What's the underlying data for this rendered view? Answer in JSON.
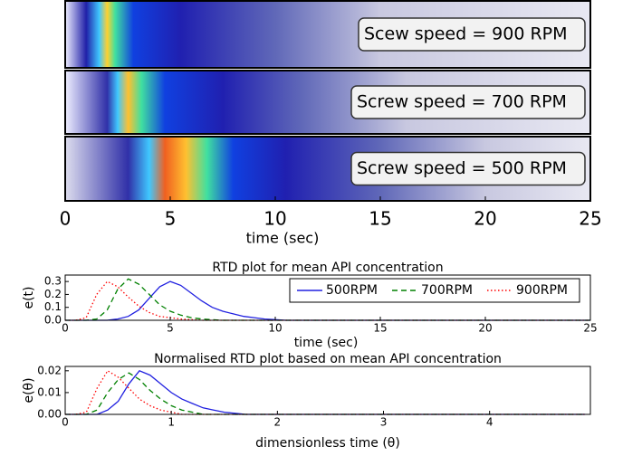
{
  "chart_data": [
    {
      "type": "heatmap",
      "xlabel": "time (sec)",
      "xlim": [
        0,
        25
      ],
      "xticks": [
        0,
        5,
        10,
        15,
        20,
        25
      ],
      "panels": [
        "Scew speed = 900 RPM",
        "Screw speed = 700 RPM",
        "Screw speed = 500 RPM"
      ]
    },
    {
      "type": "line",
      "title": "RTD plot for mean API concentration",
      "ylabel": "e(t)",
      "xlabel": "time (sec)",
      "xlim": [
        0,
        25
      ],
      "xticks": [
        0,
        5,
        10,
        15,
        20,
        25
      ],
      "ylim": [
        0,
        0.35
      ],
      "yticks": [
        {
          "value": 0,
          "label": "0.0"
        },
        {
          "value": 0.1,
          "label": "0.1"
        },
        {
          "value": 0.2,
          "label": "0.2"
        },
        {
          "value": 0.3,
          "label": "0.3"
        }
      ],
      "legend": "upper right",
      "x": [
        0,
        0.5,
        1,
        1.5,
        2,
        2.5,
        3,
        3.5,
        4,
        4.5,
        5,
        5.5,
        6,
        6.5,
        7,
        7.5,
        8,
        8.5,
        9,
        9.5,
        10,
        10.5,
        11,
        11.5,
        12,
        25
      ],
      "series": [
        {
          "name": "500RPM",
          "color": "#2020e0",
          "style": "solid",
          "values": [
            0,
            0,
            0,
            0,
            0,
            0.01,
            0.03,
            0.08,
            0.17,
            0.26,
            0.3,
            0.27,
            0.21,
            0.15,
            0.1,
            0.07,
            0.05,
            0.03,
            0.02,
            0.01,
            0.005,
            0,
            0,
            0,
            0,
            0
          ]
        },
        {
          "name": "700RPM",
          "color": "#008000",
          "style": "dashed",
          "values": [
            0,
            0,
            0,
            0.01,
            0.08,
            0.24,
            0.32,
            0.28,
            0.2,
            0.12,
            0.07,
            0.04,
            0.02,
            0.01,
            0.005,
            0,
            0,
            0,
            0,
            0,
            0,
            0,
            0,
            0,
            0,
            0
          ]
        },
        {
          "name": "900RPM",
          "color": "#ff0000",
          "style": "dotted",
          "values": [
            0,
            0,
            0.02,
            0.2,
            0.3,
            0.26,
            0.18,
            0.11,
            0.06,
            0.03,
            0.02,
            0.01,
            0.005,
            0,
            0,
            0,
            0,
            0,
            0,
            0,
            0,
            0,
            0,
            0,
            0,
            0
          ]
        }
      ]
    },
    {
      "type": "line",
      "title": "Normalised RTD plot based on mean API concentration",
      "ylabel": "e(θ)",
      "xlabel": "dimensionless time (θ)",
      "xlim": [
        0,
        4.95
      ],
      "xticks": [
        0,
        1,
        2,
        3,
        4
      ],
      "ylim": [
        0,
        0.022
      ],
      "yticks": [
        {
          "value": 0,
          "label": "0.00"
        },
        {
          "value": 0.01,
          "label": "0.01"
        },
        {
          "value": 0.02,
          "label": "0.02"
        }
      ],
      "x": [
        0,
        0.1,
        0.2,
        0.3,
        0.4,
        0.5,
        0.6,
        0.7,
        0.8,
        0.9,
        1.0,
        1.1,
        1.2,
        1.3,
        1.4,
        1.5,
        1.6,
        1.7,
        1.8,
        1.9,
        2.0,
        4.9
      ],
      "series": [
        {
          "name": "500RPM",
          "color": "#2020e0",
          "style": "solid",
          "values": [
            0,
            0,
            0,
            0,
            0.002,
            0.006,
            0.014,
            0.02,
            0.018,
            0.014,
            0.01,
            0.007,
            0.005,
            0.003,
            0.002,
            0.001,
            0.0005,
            0,
            0,
            0,
            0,
            0
          ]
        },
        {
          "name": "700RPM",
          "color": "#008000",
          "style": "dashed",
          "values": [
            0,
            0,
            0,
            0.002,
            0.01,
            0.016,
            0.019,
            0.016,
            0.011,
            0.007,
            0.004,
            0.002,
            0.001,
            0,
            0,
            0,
            0,
            0,
            0,
            0,
            0,
            0
          ]
        },
        {
          "name": "900RPM",
          "color": "#ff0000",
          "style": "dotted",
          "values": [
            0,
            0,
            0.001,
            0.012,
            0.02,
            0.017,
            0.012,
            0.007,
            0.004,
            0.002,
            0.001,
            0,
            0,
            0,
            0,
            0,
            0,
            0,
            0,
            0,
            0,
            0
          ]
        }
      ]
    }
  ]
}
